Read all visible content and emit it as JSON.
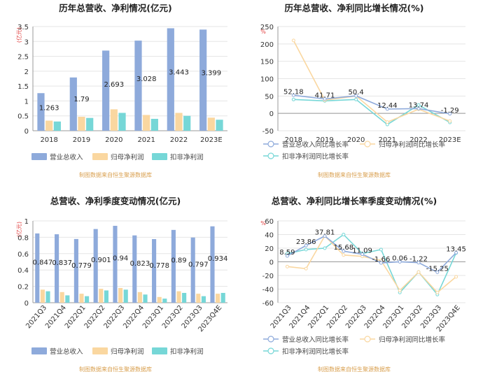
{
  "colors": {
    "revenue": "#8eaadb",
    "parent": "#fad7a0",
    "deducted": "#76d7d7",
    "grid": "#e5e5e5",
    "axis": "#999999",
    "unit": "#e04040",
    "title": "#222222",
    "source": "#d9a050"
  },
  "source_text": "制图数据来自恒生聚源数据库",
  "chart_data": [
    {
      "type": "bar",
      "title": "历年总营收、净利情况(亿元)",
      "unit_label": "(亿元)",
      "categories": [
        "2018",
        "2019",
        "2020",
        "2021",
        "2022",
        "2023E"
      ],
      "series": [
        {
          "name": "营业总收入",
          "values": [
            1.263,
            1.79,
            2.693,
            3.028,
            3.443,
            3.399
          ]
        },
        {
          "name": "归母净利润",
          "values": [
            0.34,
            0.47,
            0.72,
            0.53,
            0.6,
            0.44
          ]
        },
        {
          "name": "扣非净利润",
          "values": [
            0.31,
            0.43,
            0.6,
            0.4,
            0.5,
            0.37
          ]
        }
      ],
      "data_labels": [
        "1.263",
        "1.79",
        "2.693",
        "3.028",
        "3.443",
        "3.399"
      ],
      "ylim": [
        0,
        3.5
      ],
      "yticks": [
        "0",
        "0.5",
        "1",
        "1.5",
        "2",
        "2.5",
        "3",
        "3.5"
      ],
      "legend": [
        "营业总收入",
        "归母净利润",
        "扣非净利润"
      ]
    },
    {
      "type": "line",
      "title": "历年总营收、净利同比增长情况(%)",
      "unit_label": "%",
      "categories": [
        "2018",
        "2019",
        "2020",
        "2021",
        "2022",
        "2023E"
      ],
      "series": [
        {
          "name": "营业总收入同比增长率",
          "values": [
            52.18,
            41.71,
            50.4,
            12.44,
            13.74,
            -1.29
          ]
        },
        {
          "name": "归母净利润同比增长率",
          "values": [
            210,
            38,
            50,
            -25,
            12,
            -22
          ]
        },
        {
          "name": "扣非净利润同比增长率",
          "values": [
            40,
            36,
            40,
            -32,
            24,
            -26
          ]
        }
      ],
      "data_labels": [
        "52.18",
        "41.71",
        "50.4",
        "12.44",
        "13.74",
        "-1.29"
      ],
      "ylim": [
        -50,
        250
      ],
      "yticks": [
        "-50",
        "0",
        "50",
        "100",
        "150",
        "200",
        "250"
      ],
      "legend": [
        "营业总收入同比增长率",
        "归母净利润同比增长率",
        "扣非净利润同比增长率"
      ]
    },
    {
      "type": "bar",
      "title": "总营收、净利季度变动情况(亿元)",
      "unit_label": "(亿元)",
      "categories": [
        "2021Q3",
        "2021Q4",
        "2022Q1",
        "2022Q2",
        "2022Q3",
        "2022Q4",
        "2023Q1",
        "2023Q2",
        "2023Q3",
        "2023Q4E"
      ],
      "series": [
        {
          "name": "营业总收入",
          "values": [
            0.847,
            0.837,
            0.779,
            0.901,
            0.94,
            0.823,
            0.778,
            0.89,
            0.797,
            0.934
          ]
        },
        {
          "name": "归母净利润",
          "values": [
            0.16,
            0.13,
            0.11,
            0.17,
            0.18,
            0.13,
            0.07,
            0.14,
            0.11,
            0.11
          ]
        },
        {
          "name": "扣非净利润",
          "values": [
            0.14,
            0.09,
            0.08,
            0.15,
            0.16,
            0.1,
            0.05,
            0.12,
            0.08,
            0.12
          ]
        }
      ],
      "data_labels": [
        "0.847",
        "0.837",
        "0.779",
        "0.901",
        "0.94",
        "0.823",
        "0.778",
        "0.89",
        "0.797",
        "0.934"
      ],
      "ylim": [
        0,
        1
      ],
      "yticks": [
        "0",
        "0.2",
        "0.4",
        "0.6",
        "0.8",
        "1"
      ],
      "legend": [
        "营业总收入",
        "归母净利润",
        "扣非净利润"
      ]
    },
    {
      "type": "line",
      "title": "总营收、净利同比增长率季度变动情况(%)",
      "unit_label": "%",
      "categories": [
        "2021Q3",
        "2021Q4",
        "2022Q1",
        "2022Q2",
        "2022Q3",
        "2022Q4",
        "2023Q1",
        "2023Q2",
        "2023Q3",
        "2023Q4E"
      ],
      "series": [
        {
          "name": "营业总收入同比增长率",
          "values": [
            8.59,
            23.86,
            37.81,
            15.68,
            11.09,
            -1.66,
            0.06,
            -1.22,
            -15.25,
            13.45
          ]
        },
        {
          "name": "归母净利润同比增长率",
          "values": [
            -7,
            -10,
            38,
            10,
            8,
            2,
            -42,
            -15,
            -45,
            -22
          ]
        },
        {
          "name": "扣非净利润同比增长率",
          "values": [
            12,
            18,
            20,
            40,
            12,
            18,
            -45,
            -15,
            -48,
            13
          ]
        }
      ],
      "data_labels": [
        "8.59",
        "23.86",
        "37.81",
        "15.68",
        "11.09",
        "-1.66",
        "0.06",
        "-1.22",
        "-15.25",
        "13.45"
      ],
      "ylim": [
        -60,
        60
      ],
      "yticks": [
        "-60",
        "-40",
        "-20",
        "0",
        "20",
        "40",
        "60"
      ],
      "legend": [
        "营业总收入同比增长率",
        "归母净利润同比增长率",
        "扣非净利润同比增长率"
      ]
    }
  ]
}
